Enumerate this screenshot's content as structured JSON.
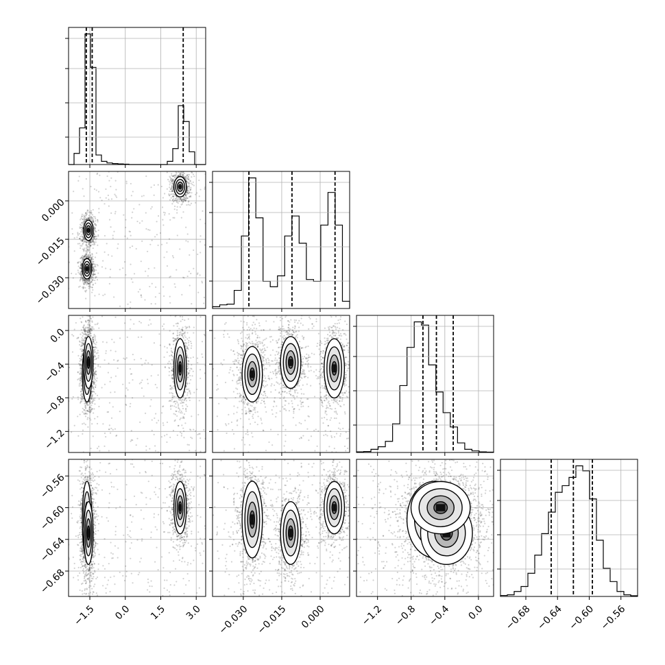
{
  "chart_data": {
    "type": "corner",
    "title": "",
    "parameters": [
      {
        "range": [
          -2.4,
          3.4
        ],
        "ticks": [
          -1.5,
          0.0,
          1.5,
          3.0
        ],
        "tick_labels": [
          "−1.5",
          "0.0",
          "1.5",
          "3.0"
        ],
        "quantiles": [
          -1.65,
          -1.4,
          2.45
        ],
        "hist_counts": [
          0,
          0.35,
          1.15,
          4.1,
          3.05,
          0.3,
          0.1,
          0.05,
          0.03,
          0.02,
          0.01,
          0,
          0,
          0,
          0,
          0,
          0,
          0,
          0.1,
          0.5,
          1.85,
          1.35,
          0.4,
          0,
          0
        ]
      },
      {
        "range": [
          -0.042,
          0.0115
        ],
        "ticks": [
          -0.03,
          -0.015,
          0.0
        ],
        "tick_labels": [
          "−0.030",
          "−0.015",
          "0.000"
        ],
        "quantiles": [
          -0.0278,
          -0.011,
          0.0058
        ],
        "hist_counts": [
          0.05,
          0.1,
          0.12,
          0.5,
          2.0,
          3.6,
          2.5,
          0.75,
          0.6,
          0.9,
          2.0,
          2.55,
          1.8,
          0.8,
          0.75,
          2.3,
          3.2,
          2.3,
          0.2
        ]
      },
      {
        "range": [
          -1.45,
          0.18
        ],
        "ticks": [
          -1.2,
          -0.8,
          -0.4,
          0.0
        ],
        "tick_labels": [
          "−1.2",
          "−0.8",
          "−0.4",
          "0.0"
        ],
        "quantiles": [
          -0.66,
          -0.5,
          -0.3
        ],
        "hist_counts": [
          0.02,
          0.03,
          0.1,
          0.18,
          0.35,
          0.9,
          2.1,
          3.3,
          4.1,
          4.0,
          2.75,
          1.9,
          1.25,
          0.8,
          0.3,
          0.1,
          0.05,
          0.02,
          0.01
        ]
      },
      {
        "range": [
          -0.712,
          -0.539
        ],
        "ticks": [
          -0.68,
          -0.64,
          -0.6,
          -0.56
        ],
        "tick_labels": [
          "−0.68",
          "−0.64",
          "−0.60",
          "−0.56"
        ],
        "quantiles": [
          -0.648,
          -0.62,
          -0.596
        ],
        "hist_counts": [
          0.03,
          0.05,
          0.15,
          0.3,
          0.7,
          1.25,
          1.9,
          2.55,
          3.15,
          3.35,
          3.6,
          3.95,
          3.8,
          2.95,
          1.7,
          0.85,
          0.45,
          0.15,
          0.05,
          0.02
        ]
      }
    ],
    "modes": [
      {
        "weight": 0.32,
        "mean": [
          -1.62,
          -0.0265,
          -0.52,
          -0.615
        ],
        "sd": [
          0.09,
          0.0018,
          0.15,
          0.022
        ]
      },
      {
        "weight": 0.26,
        "mean": [
          -1.56,
          -0.0115,
          -0.38,
          -0.632
        ],
        "sd": [
          0.09,
          0.0018,
          0.14,
          0.018
        ]
      },
      {
        "weight": 0.3,
        "mean": [
          2.32,
          0.0055,
          -0.45,
          -0.6
        ],
        "sd": [
          0.12,
          0.0018,
          0.16,
          0.015
        ]
      }
    ],
    "show_titles": false,
    "grid": true
  }
}
